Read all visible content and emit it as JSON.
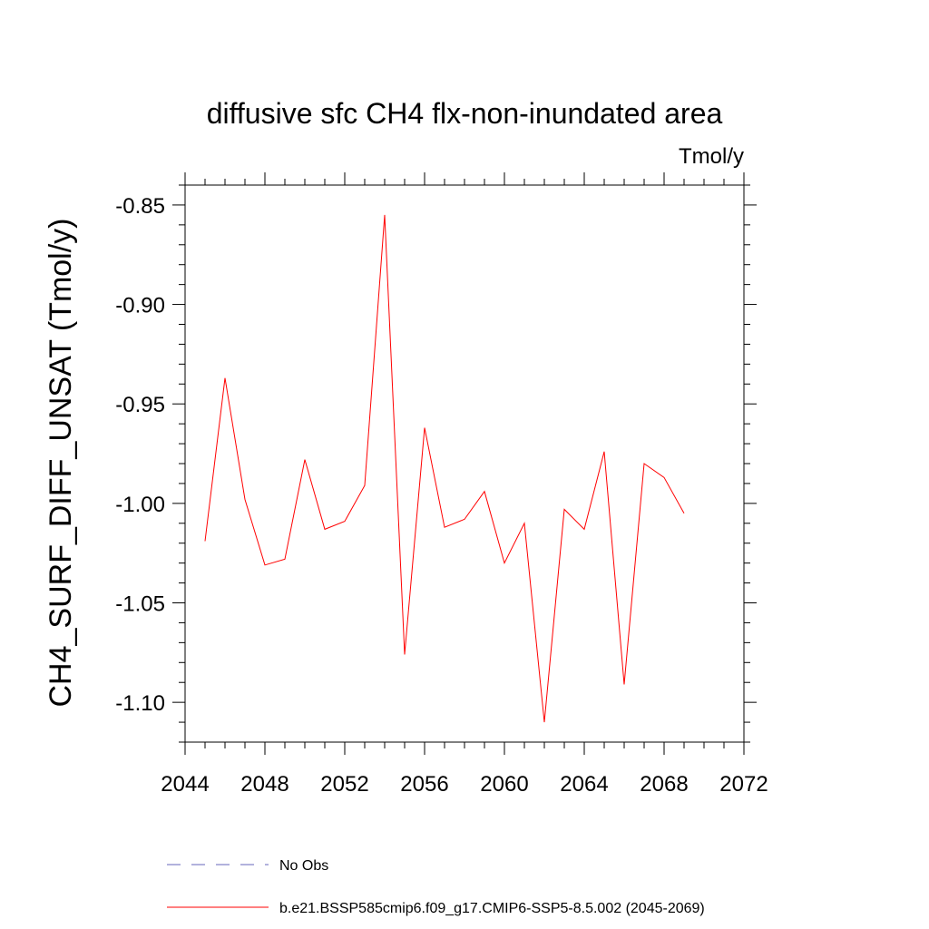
{
  "chart_data": {
    "type": "line",
    "title": "diffusive sfc CH4 flx-non-inundated area",
    "units": "Tmol/y",
    "xlabel": "",
    "ylabel": "CH4_SURF_DIFF_UNSAT  (Tmol/y)",
    "xlim": [
      2044,
      2072
    ],
    "ylim": [
      -1.12,
      -0.84
    ],
    "x_ticks": [
      2044,
      2048,
      2052,
      2056,
      2060,
      2064,
      2068,
      2072
    ],
    "x_tick_labels": [
      "2044",
      "2048",
      "2052",
      "2056",
      "2060",
      "2064",
      "2068",
      "2072"
    ],
    "y_ticks": [
      -1.1,
      -1.05,
      -1.0,
      -0.95,
      -0.9,
      -0.85
    ],
    "y_tick_labels": [
      "-1.10",
      "-1.05",
      "-1.00",
      "-0.95",
      "-0.90",
      "-0.85"
    ],
    "grid": false,
    "legend_position": "bottom",
    "series": [
      {
        "name": "No Obs",
        "color": "#6666bb",
        "dash": true,
        "x": [],
        "y": []
      },
      {
        "name": "b.e21.BSSP585cmip6.f09_g17.CMIP6-SSP5-8.5.002 (2045-2069)",
        "color": "#ff0000",
        "dash": false,
        "x": [
          2045,
          2046,
          2047,
          2048,
          2049,
          2050,
          2051,
          2052,
          2053,
          2054,
          2055,
          2056,
          2057,
          2058,
          2059,
          2060,
          2061,
          2062,
          2063,
          2064,
          2065,
          2066,
          2067,
          2068,
          2069
        ],
        "y": [
          -1.019,
          -0.937,
          -0.998,
          -1.031,
          -1.028,
          -0.978,
          -1.013,
          -1.009,
          -0.991,
          -0.855,
          -1.076,
          -0.962,
          -1.012,
          -1.008,
          -0.994,
          -1.03,
          -1.01,
          -1.11,
          -1.003,
          -1.013,
          -0.974,
          -1.091,
          -0.98,
          -0.987,
          -1.005
        ]
      }
    ]
  }
}
